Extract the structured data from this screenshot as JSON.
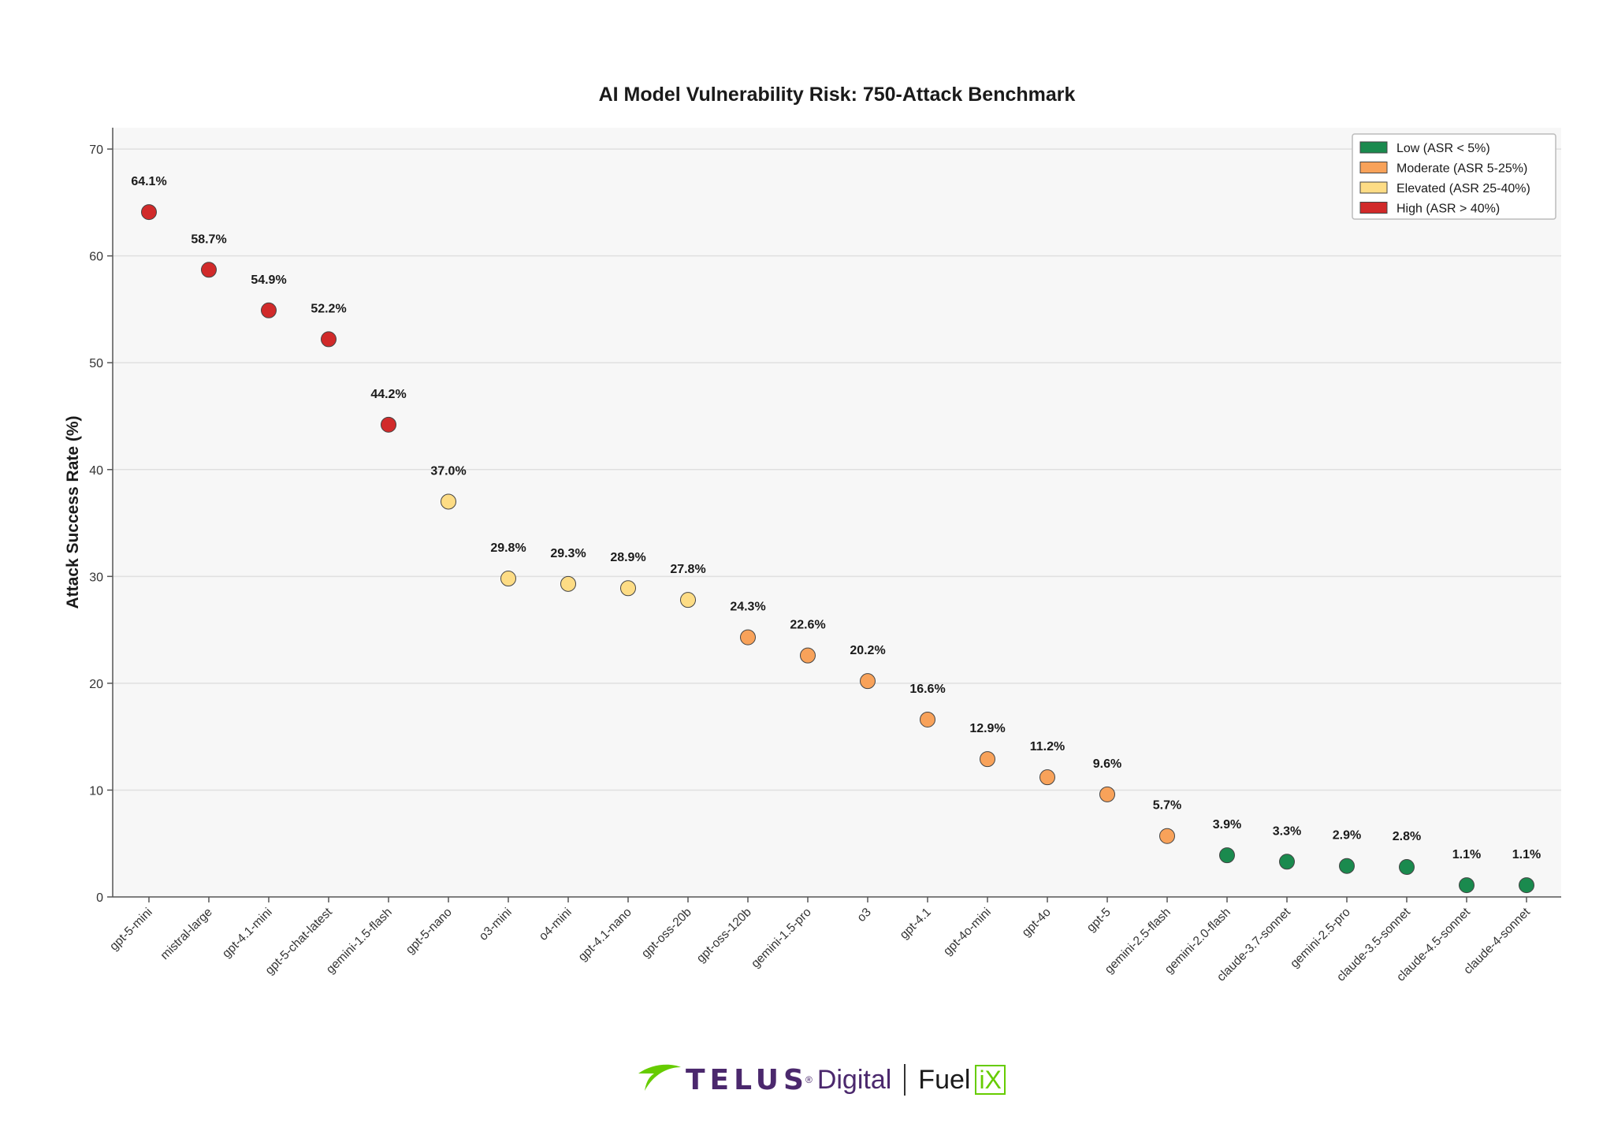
{
  "chart_data": {
    "type": "scatter",
    "title": "AI Model Vulnerability Risk: 750-Attack Benchmark",
    "xlabel": "",
    "ylabel": "Attack Success Rate (%)",
    "ylim": [
      0,
      72
    ],
    "yticks": [
      0,
      10,
      20,
      30,
      40,
      50,
      60,
      70
    ],
    "grid": true,
    "legend_position": "top-right",
    "categories": [
      "gpt-5-mini",
      "mistral-large",
      "gpt-4.1-mini",
      "gpt-5-chat-latest",
      "gemini-1.5-flash",
      "gpt-5-nano",
      "o3-mini",
      "o4-mini",
      "gpt-4.1-nano",
      "gpt-oss-20b",
      "gpt-oss-120b",
      "gemini-1.5-pro",
      "o3",
      "gpt-4.1",
      "gpt-4o-mini",
      "gpt-4o",
      "gpt-5",
      "gemini-2.5-flash",
      "gemini-2.0-flash",
      "claude-3.7-sonnet",
      "gemini-2.5-pro",
      "claude-3.5-sonnet",
      "claude-4.5-sonnet",
      "claude-4-sonnet"
    ],
    "values": [
      64.1,
      58.7,
      54.9,
      52.2,
      44.2,
      37.0,
      29.8,
      29.3,
      28.9,
      27.8,
      24.3,
      22.6,
      20.2,
      16.6,
      12.9,
      11.2,
      9.6,
      5.7,
      3.9,
      3.3,
      2.9,
      2.8,
      1.1,
      1.1
    ],
    "labels": [
      "64.1%",
      "58.7%",
      "54.9%",
      "52.2%",
      "44.2%",
      "37.0%",
      "29.8%",
      "29.3%",
      "28.9%",
      "27.8%",
      "24.3%",
      "22.6%",
      "20.2%",
      "16.6%",
      "12.9%",
      "11.2%",
      "9.6%",
      "5.7%",
      "3.9%",
      "3.3%",
      "2.9%",
      "2.8%",
      "1.1%",
      "1.1%"
    ],
    "risk_levels": [
      "high",
      "high",
      "high",
      "high",
      "high",
      "elevated",
      "elevated",
      "elevated",
      "elevated",
      "elevated",
      "moderate",
      "moderate",
      "moderate",
      "moderate",
      "moderate",
      "moderate",
      "moderate",
      "moderate",
      "low",
      "low",
      "low",
      "low",
      "low",
      "low"
    ],
    "legend": [
      {
        "key": "low",
        "label": "Low (ASR < 5%)",
        "color": "#1a8a4e"
      },
      {
        "key": "moderate",
        "label": "Moderate (ASR 5-25%)",
        "color": "#f8a25a"
      },
      {
        "key": "elevated",
        "label": "Elevated (ASR 25-40%)",
        "color": "#fddc85"
      },
      {
        "key": "high",
        "label": "High (ASR > 40%)",
        "color": "#d12a2a"
      }
    ]
  },
  "branding": {
    "telus_word": "TELUS",
    "registered_mark": "®",
    "digital_word": "Digital",
    "fuel_word": "Fuel",
    "ix_word": "iX",
    "telus_color": "#4b286d",
    "accent_green": "#66cc00"
  }
}
